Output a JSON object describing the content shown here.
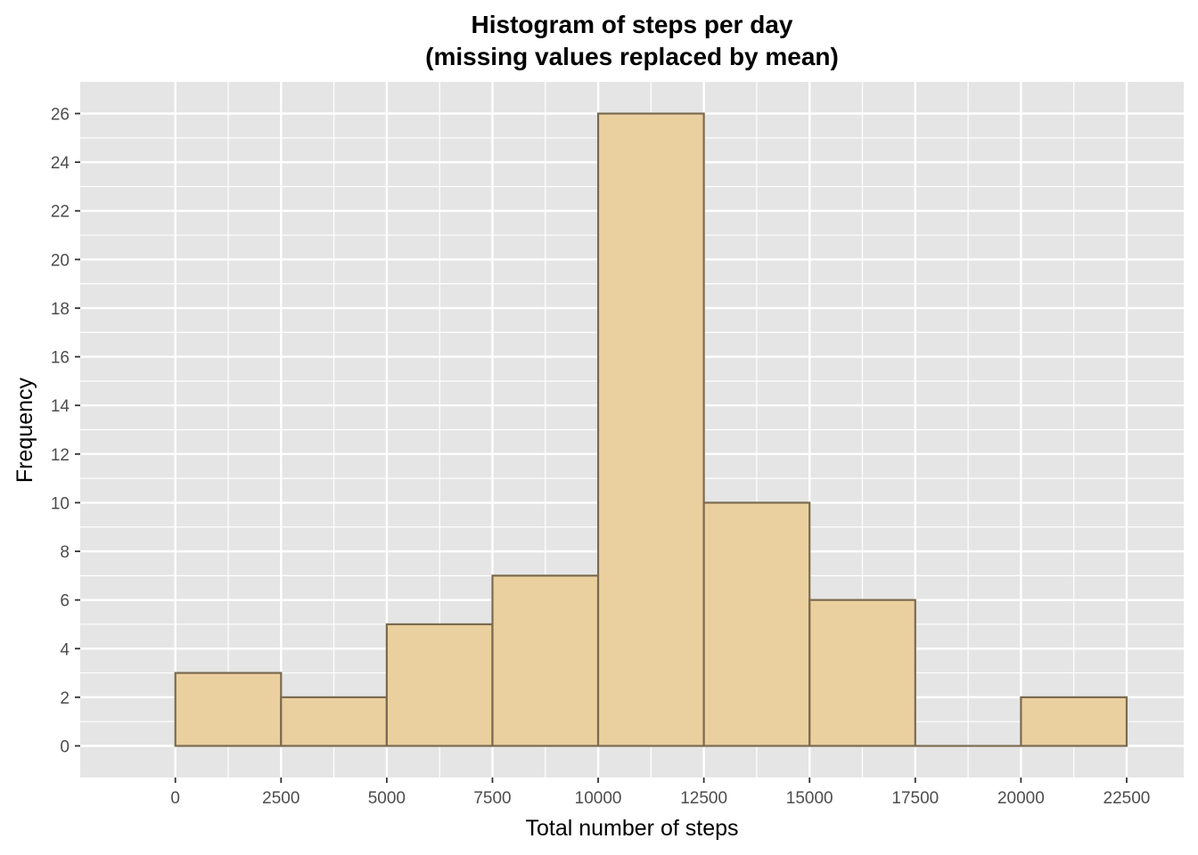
{
  "chart_data": {
    "type": "bar",
    "title": "Histogram of steps per day",
    "subtitle": "(missing values replaced by mean)",
    "xlabel": "Total number of steps",
    "ylabel": "Frequency",
    "bin_edges": [
      0,
      2500,
      5000,
      7500,
      10000,
      12500,
      15000,
      17500,
      20000,
      22500
    ],
    "values": [
      3,
      2,
      5,
      7,
      26,
      10,
      6,
      0,
      2
    ],
    "xlim": [
      -2250,
      23850
    ],
    "ylim": [
      -1.3,
      27.3
    ],
    "x_ticks": [
      0,
      2500,
      5000,
      7500,
      10000,
      12500,
      15000,
      17500,
      20000,
      22500
    ],
    "y_ticks": [
      0,
      2,
      4,
      6,
      8,
      10,
      12,
      14,
      16,
      18,
      20,
      22,
      24,
      26
    ],
    "grid": true,
    "colors": {
      "panel": "#e5e5e5",
      "grid": "#ffffff",
      "bar_fill": "#ebd09f",
      "bar_stroke": "#7a6a50"
    }
  }
}
